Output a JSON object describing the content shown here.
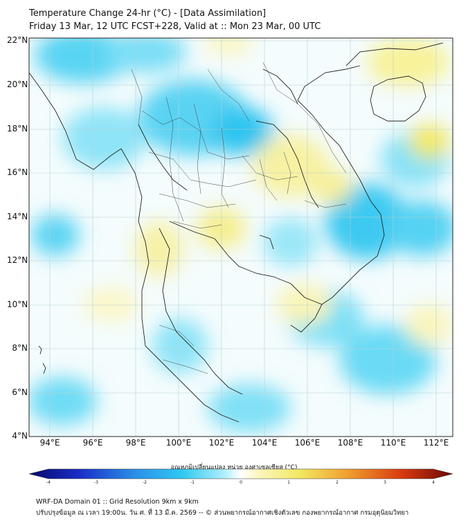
{
  "title": {
    "line1": "Temperature Change 24-hr (°C) - [Data Assimilation]",
    "line2": "Friday 13 Mar, 12 UTC FCST+228, Valid at :: Mon 23 Mar, 00 UTC"
  },
  "map": {
    "lat_labels": [
      "22°N",
      "20°N",
      "18°N",
      "16°N",
      "14°N",
      "12°N",
      "10°N",
      "8°N",
      "6°N",
      "4°N"
    ],
    "lon_labels": [
      "94°E",
      "96°E",
      "98°E",
      "100°E",
      "102°E",
      "104°E",
      "106°E",
      "108°E",
      "110°E",
      "112°E"
    ]
  },
  "colorbar": {
    "title": "อุณหภูมิเปลี่ยนแปลง หน่วย องศาเซลเซียส (°C)",
    "ticks": [
      "-4",
      "-3",
      "-2",
      "-1",
      "0",
      "1",
      "2",
      "3",
      "4"
    ]
  },
  "footer": {
    "line1": "WRF-DA Domain 01 :: Grid Resolution 9km x 9km",
    "line2": "ปรับปรุงข้อมูล ณ เวลา 19:00น. วัน ศ. ที่ 13 มี.ค. 2569 -- © ส่วนพยากรณ์อากาศเชิงตัวเลข กองพยากรณ์อากาศ กรมอุตุนิยมวิทยา"
  },
  "colors": {
    "cold_strong": "#2ec8f0",
    "cold_light": "#aeeefb",
    "warm_light": "#fbf7c0",
    "warm_strong": "#f2e860",
    "coastline": "#222222"
  }
}
